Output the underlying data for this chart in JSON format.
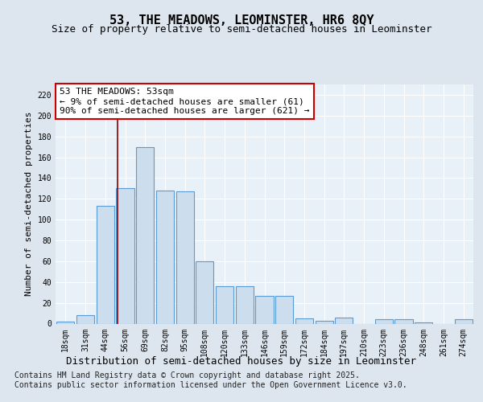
{
  "title": "53, THE MEADOWS, LEOMINSTER, HR6 8QY",
  "subtitle": "Size of property relative to semi-detached houses in Leominster",
  "xlabel": "Distribution of semi-detached houses by size in Leominster",
  "ylabel": "Number of semi-detached properties",
  "categories": [
    "18sqm",
    "31sqm",
    "44sqm",
    "56sqm",
    "69sqm",
    "82sqm",
    "95sqm",
    "108sqm",
    "120sqm",
    "133sqm",
    "146sqm",
    "159sqm",
    "172sqm",
    "184sqm",
    "197sqm",
    "210sqm",
    "223sqm",
    "236sqm",
    "248sqm",
    "261sqm",
    "274sqm"
  ],
  "values": [
    2,
    8,
    113,
    130,
    170,
    128,
    127,
    60,
    36,
    36,
    27,
    27,
    5,
    3,
    6,
    0,
    4,
    4,
    1,
    0,
    4
  ],
  "bar_color": "#ccdded",
  "bar_edge_color": "#5b9bd5",
  "vline_x_index": 2.62,
  "annotation_text": "53 THE MEADOWS: 53sqm\n← 9% of semi-detached houses are smaller (61)\n90% of semi-detached houses are larger (621) →",
  "annotation_box_color": "#ffffff",
  "annotation_box_edge_color": "#cc0000",
  "vline_color": "#8b0000",
  "footer_text": "Contains HM Land Registry data © Crown copyright and database right 2025.\nContains public sector information licensed under the Open Government Licence v3.0.",
  "background_color": "#dde6ef",
  "plot_background_color": "#e8f0f8",
  "ylim": [
    0,
    230
  ],
  "yticks": [
    0,
    20,
    40,
    60,
    80,
    100,
    120,
    140,
    160,
    180,
    200,
    220
  ],
  "title_fontsize": 11,
  "subtitle_fontsize": 9,
  "xlabel_fontsize": 9,
  "ylabel_fontsize": 8,
  "tick_fontsize": 7,
  "annotation_fontsize": 8,
  "footer_fontsize": 7
}
